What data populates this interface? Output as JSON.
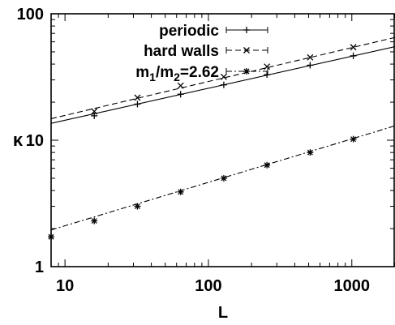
{
  "chart_data": {
    "type": "line",
    "xlabel": "L",
    "ylabel": "κ",
    "xscale": "log",
    "yscale": "log",
    "xlim": [
      8,
      2000
    ],
    "ylim": [
      1,
      100
    ],
    "xticks": [
      10,
      100,
      1000
    ],
    "xtick_labels": [
      "10",
      "100",
      "1000"
    ],
    "yticks": [
      1,
      10,
      100
    ],
    "ytick_labels": [
      "1",
      "10",
      "100"
    ],
    "grid": false,
    "legend_position": "top-left",
    "series": [
      {
        "name": "periodic",
        "marker": "plus",
        "line_style": "solid",
        "points": [
          [
            16,
            15.6
          ],
          [
            32,
            19.3
          ],
          [
            64,
            23.1
          ],
          [
            128,
            27.4
          ],
          [
            256,
            33.0
          ],
          [
            512,
            39.2
          ],
          [
            1024,
            46.5
          ]
        ],
        "fit": [
          [
            8,
            13.6
          ],
          [
            2000,
            55.0
          ]
        ]
      },
      {
        "name": "hard walls",
        "marker": "cross",
        "line_style": "dashed",
        "points": [
          [
            16,
            16.9
          ],
          [
            32,
            21.7
          ],
          [
            64,
            27.0
          ],
          [
            128,
            31.7
          ],
          [
            256,
            38.2
          ],
          [
            512,
            45.2
          ],
          [
            1024,
            54.4
          ]
        ],
        "fit": [
          [
            8,
            14.8
          ],
          [
            2000,
            65.0
          ]
        ]
      },
      {
        "name": "m1/m2=2.62",
        "name_parts": {
          "m1": "m",
          "sub1": "1",
          "slash": "/",
          "m2": "m",
          "sub2": "2",
          "value": "=2.62"
        },
        "marker": "star",
        "line_style": "dashdot",
        "points": [
          [
            8,
            1.72
          ],
          [
            16,
            2.3
          ],
          [
            32,
            3.0
          ],
          [
            64,
            3.9
          ],
          [
            128,
            5.0
          ],
          [
            256,
            6.35
          ],
          [
            512,
            8.0
          ],
          [
            1024,
            10.2
          ]
        ],
        "fit": [
          [
            8,
            1.95
          ],
          [
            2000,
            13.0
          ]
        ]
      }
    ]
  }
}
